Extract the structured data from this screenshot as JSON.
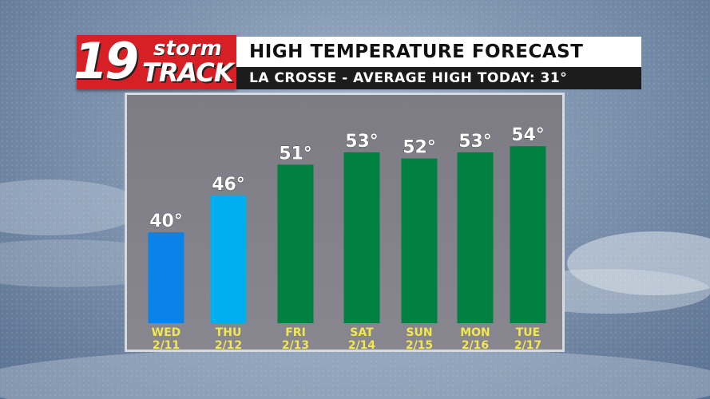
{
  "header": {
    "logo_number": "19",
    "logo_storm": "storm",
    "logo_track": "TRACK",
    "title": "HIGH TEMPERATURE FORECAST",
    "subtitle": "LA CROSSE - AVERAGE HIGH TODAY: 31°"
  },
  "colors": {
    "cold_blue": "#0a82e8",
    "light_blue": "#00aeef",
    "green": "#008142",
    "axis_label_yellow": "#f2e84a",
    "logo_red": "#d71f26"
  },
  "chart_data": {
    "type": "bar",
    "title": "HIGH TEMPERATURE FORECAST",
    "subtitle": "LA CROSSE - AVERAGE HIGH TODAY: 31°",
    "unit": "°",
    "categories": [
      {
        "day": "WED",
        "date": "2/11"
      },
      {
        "day": "THU",
        "date": "2/12"
      },
      {
        "day": "FRI",
        "date": "2/13"
      },
      {
        "day": "SAT",
        "date": "2/14"
      },
      {
        "day": "SUN",
        "date": "2/15"
      },
      {
        "day": "MON",
        "date": "2/16"
      },
      {
        "day": "TUE",
        "date": "2/17"
      }
    ],
    "values": [
      40,
      46,
      51,
      53,
      52,
      53,
      54
    ],
    "labels": [
      "40°",
      "46°",
      "51°",
      "53°",
      "52°",
      "53°",
      "54°"
    ],
    "bar_colors": [
      "#0a82e8",
      "#00aeef",
      "#008142",
      "#008142",
      "#008142",
      "#008142",
      "#008142"
    ],
    "grid": false,
    "legend": "none"
  }
}
